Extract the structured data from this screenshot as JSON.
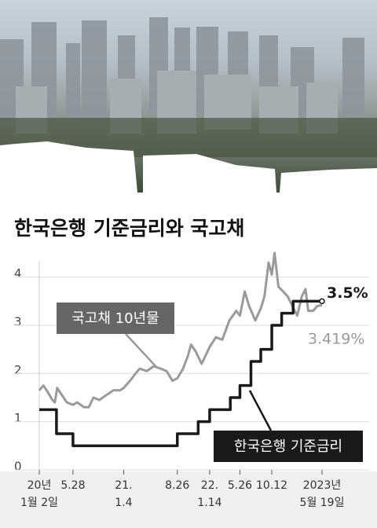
{
  "chart_data": {
    "type": "line",
    "title": "한국은행 기준금리와 국고채",
    "xlim": [
      "2020-01-02",
      "2023-05-19"
    ],
    "xticks": [
      {
        "value": "2020-01-02",
        "label": [
          "20년",
          "1월 2일"
        ]
      },
      {
        "value": "2020-05-28",
        "label": [
          "5.28"
        ]
      },
      {
        "value": "2021-01-04",
        "label": [
          "21.",
          "1.4"
        ]
      },
      {
        "value": "2021-08-26",
        "label": [
          "8.26"
        ]
      },
      {
        "value": "2022-01-14",
        "label": [
          "22.",
          "1.14"
        ]
      },
      {
        "value": "2022-05-26",
        "label": [
          "5.26"
        ]
      },
      {
        "value": "2022-10-12",
        "label": [
          "10.12"
        ]
      },
      {
        "value": "2023-05-19",
        "label": [
          "2023년",
          "5월 19일"
        ]
      }
    ],
    "ylim": [
      0,
      4.5
    ],
    "yticks": [
      0,
      1,
      2,
      3,
      4
    ],
    "grid": true,
    "series": [
      {
        "name": "국고채 10년물",
        "color": "#9a9a9a",
        "step": false,
        "end_label": "3.419%",
        "x": [
          "2020-01-02",
          "2020-01-20",
          "2020-02-10",
          "2020-02-28",
          "2020-03-10",
          "2020-03-20",
          "2020-04-10",
          "2020-05-01",
          "2020-05-28",
          "2020-06-15",
          "2020-07-15",
          "2020-08-05",
          "2020-08-25",
          "2020-09-20",
          "2020-10-20",
          "2020-11-20",
          "2020-12-20",
          "2021-01-04",
          "2021-02-01",
          "2021-02-25",
          "2021-03-15",
          "2021-04-15",
          "2021-05-15",
          "2021-06-15",
          "2021-07-10",
          "2021-08-05",
          "2021-08-26",
          "2021-09-20",
          "2021-10-10",
          "2021-10-25",
          "2021-11-15",
          "2021-12-10",
          "2022-01-14",
          "2022-02-10",
          "2022-03-10",
          "2022-04-10",
          "2022-05-10",
          "2022-05-26",
          "2022-06-16",
          "2022-07-05",
          "2022-08-01",
          "2022-08-25",
          "2022-09-10",
          "2022-09-28",
          "2022-10-12",
          "2022-10-24",
          "2022-11-10",
          "2022-12-01",
          "2022-12-20",
          "2023-01-10",
          "2023-01-31",
          "2023-02-20",
          "2023-03-08",
          "2023-03-20",
          "2023-04-10",
          "2023-04-28",
          "2023-05-19"
        ],
        "values": [
          1.65,
          1.75,
          1.6,
          1.45,
          1.4,
          1.7,
          1.55,
          1.4,
          1.35,
          1.4,
          1.3,
          1.3,
          1.5,
          1.45,
          1.55,
          1.65,
          1.65,
          1.7,
          1.85,
          2.0,
          2.1,
          2.05,
          2.15,
          2.1,
          2.05,
          1.85,
          1.9,
          2.1,
          2.35,
          2.6,
          2.45,
          2.2,
          2.55,
          2.75,
          2.7,
          3.1,
          3.3,
          3.2,
          3.7,
          3.4,
          3.1,
          3.35,
          3.6,
          4.3,
          4.05,
          4.5,
          3.8,
          3.7,
          3.6,
          3.4,
          3.2,
          3.6,
          3.75,
          3.3,
          3.3,
          3.4,
          3.419
        ]
      },
      {
        "name": "한국은행 기준금리",
        "color": "#1a1a1a",
        "step": true,
        "end_label": "3.5%",
        "x": [
          "2020-01-02",
          "2020-03-17",
          "2020-05-28",
          "2021-08-26",
          "2021-11-25",
          "2022-01-14",
          "2022-04-14",
          "2022-05-26",
          "2022-07-13",
          "2022-08-25",
          "2022-10-12",
          "2022-11-24",
          "2023-01-13",
          "2023-05-19"
        ],
        "values": [
          1.25,
          0.75,
          0.5,
          0.75,
          1.0,
          1.25,
          1.5,
          1.75,
          2.25,
          2.5,
          3.0,
          3.25,
          3.5,
          3.5
        ]
      }
    ]
  }
}
